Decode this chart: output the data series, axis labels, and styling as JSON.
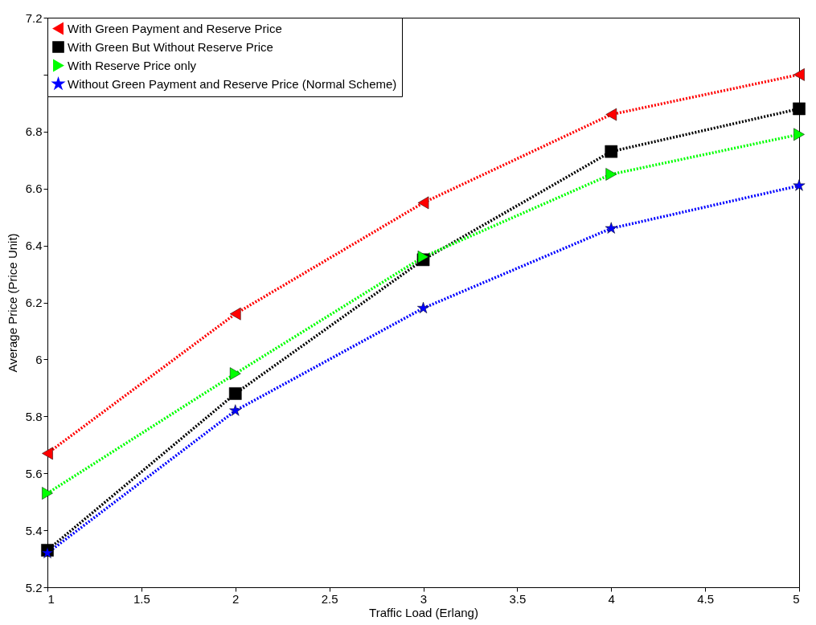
{
  "chart_data": {
    "type": "line",
    "xlabel": "Traffic Load (Erlang)",
    "ylabel": "Average Price (Price Unit)",
    "x": [
      1,
      2,
      3,
      4,
      5
    ],
    "xlim": [
      1,
      5
    ],
    "xticks": [
      1,
      1.5,
      2,
      2.5,
      3,
      3.5,
      4,
      4.5,
      5
    ],
    "ylim": [
      5.2,
      7.2
    ],
    "yticks": [
      5.2,
      5.4,
      5.6,
      5.8,
      6,
      6.2,
      6.4,
      6.6,
      6.8,
      {
        "value": 7,
        "label": null
      },
      7.2
    ],
    "grid": false,
    "legend": "top left",
    "line_style": "dotted",
    "series": [
      {
        "name": "With Green Payment and Reserve Price",
        "color": "#ff0000",
        "marker": "triangle-left",
        "values": [
          5.67,
          6.16,
          6.55,
          6.86,
          7.0
        ]
      },
      {
        "name": "With Green But Without Reserve Price",
        "color": "#000000",
        "marker": "square",
        "values": [
          5.33,
          5.88,
          6.35,
          6.73,
          6.88
        ]
      },
      {
        "name": "With Reserve Price only",
        "color": "#00ff00",
        "marker": "triangle-right",
        "values": [
          5.53,
          5.95,
          6.36,
          6.65,
          6.79
        ]
      },
      {
        "name": "Without Green Payment and Reserve Price (Normal Scheme)",
        "color": "#0000ff",
        "marker": "star",
        "values": [
          5.32,
          5.82,
          6.18,
          6.46,
          6.61
        ]
      }
    ]
  }
}
